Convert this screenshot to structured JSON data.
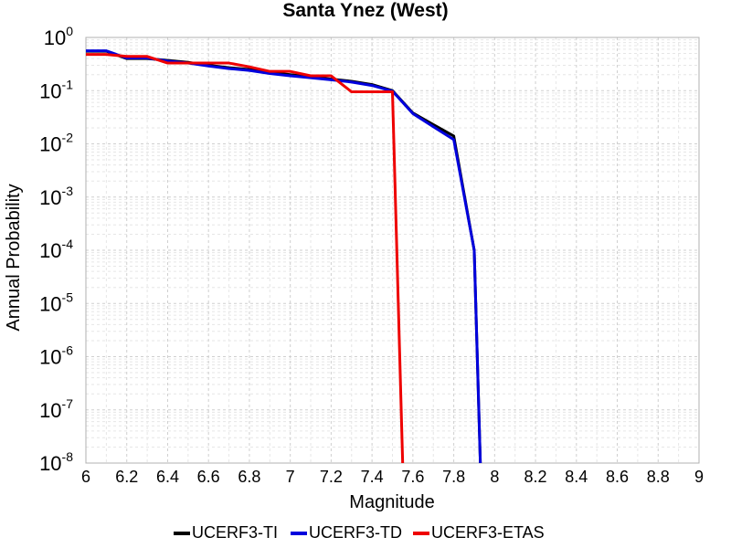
{
  "chart_data": {
    "type": "line",
    "title": "Santa Ynez (West)",
    "xlabel": "Magnitude",
    "ylabel": "Annual Probability",
    "xlim": [
      6,
      9
    ],
    "ylim": [
      1e-08,
      1
    ],
    "yscale": "log",
    "x_ticks": [
      "6",
      "6.2",
      "6.4",
      "6.6",
      "6.8",
      "7",
      "7.2",
      "7.4",
      "7.6",
      "7.8",
      "8",
      "8.2",
      "8.4",
      "8.6",
      "8.8",
      "9"
    ],
    "y_ticks": [
      {
        "base": "10",
        "exp": "0",
        "value": 1
      },
      {
        "base": "10",
        "exp": "-1",
        "value": 0.1
      },
      {
        "base": "10",
        "exp": "-2",
        "value": 0.01
      },
      {
        "base": "10",
        "exp": "-3",
        "value": 0.001
      },
      {
        "base": "10",
        "exp": "-4",
        "value": 0.0001
      },
      {
        "base": "10",
        "exp": "-5",
        "value": 1e-05
      },
      {
        "base": "10",
        "exp": "-6",
        "value": 1e-06
      },
      {
        "base": "10",
        "exp": "-7",
        "value": 1e-07
      },
      {
        "base": "10",
        "exp": "-8",
        "value": 1e-08
      }
    ],
    "grid": true,
    "legend_position": "bottom",
    "series": [
      {
        "name": "UCERF3-TI",
        "color": "#000000",
        "x": [
          6.0,
          6.1,
          6.2,
          6.3,
          6.4,
          6.5,
          6.6,
          6.7,
          6.8,
          6.9,
          7.0,
          7.1,
          7.2,
          7.3,
          7.4,
          7.5,
          7.6,
          7.7,
          7.8,
          7.9,
          7.93
        ],
        "y": [
          0.55,
          0.55,
          0.4,
          0.4,
          0.37,
          0.34,
          0.3,
          0.27,
          0.25,
          0.22,
          0.2,
          0.18,
          0.165,
          0.15,
          0.13,
          0.1,
          0.038,
          0.023,
          0.014,
          0.0001,
          1e-08
        ]
      },
      {
        "name": "UCERF3-TD",
        "color": "#0000dd",
        "x": [
          6.0,
          6.1,
          6.2,
          6.3,
          6.4,
          6.5,
          6.6,
          6.7,
          6.8,
          6.9,
          7.0,
          7.1,
          7.2,
          7.3,
          7.4,
          7.5,
          7.6,
          7.7,
          7.8,
          7.9,
          7.93
        ],
        "y": [
          0.56,
          0.56,
          0.41,
          0.41,
          0.36,
          0.33,
          0.29,
          0.26,
          0.24,
          0.21,
          0.19,
          0.175,
          0.16,
          0.145,
          0.125,
          0.098,
          0.037,
          0.021,
          0.012,
          0.0001,
          1e-08
        ]
      },
      {
        "name": "UCERF3-ETAS",
        "color": "#ee0000",
        "x": [
          6.0,
          6.1,
          6.2,
          6.3,
          6.4,
          6.5,
          6.6,
          6.7,
          6.8,
          6.9,
          7.0,
          7.1,
          7.2,
          7.3,
          7.4,
          7.5,
          7.55
        ],
        "y": [
          0.48,
          0.48,
          0.44,
          0.44,
          0.33,
          0.33,
          0.33,
          0.33,
          0.28,
          0.23,
          0.23,
          0.19,
          0.19,
          0.095,
          0.095,
          0.095,
          1e-08
        ]
      }
    ]
  }
}
